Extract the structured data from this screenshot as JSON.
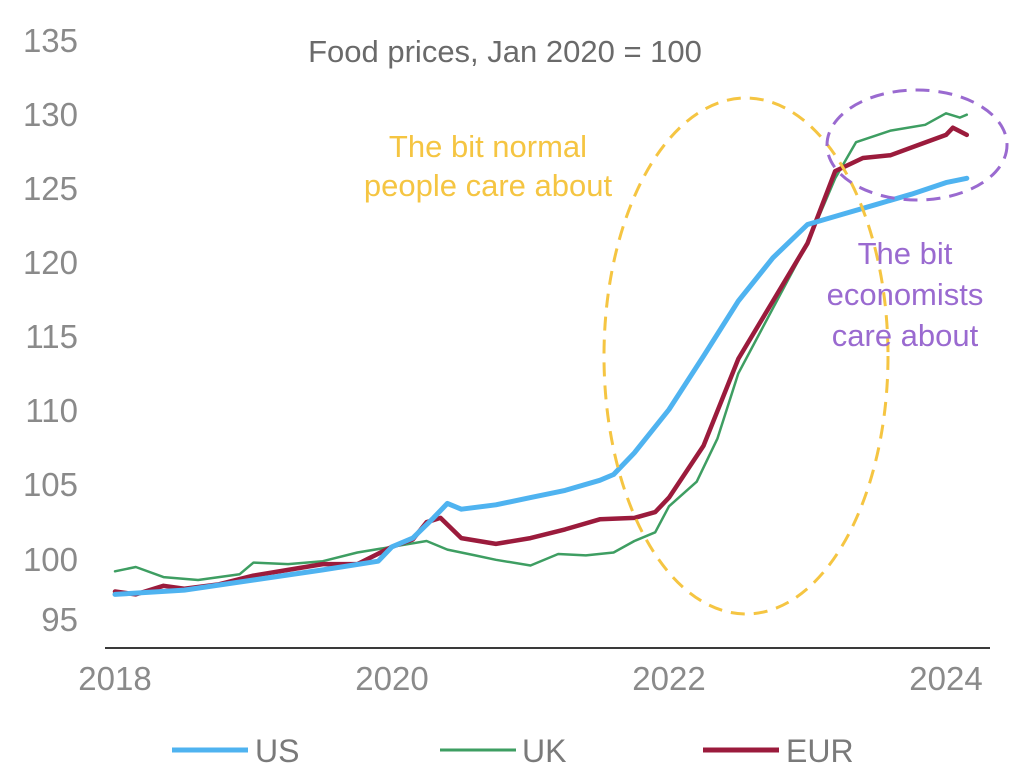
{
  "chart_data": {
    "type": "line",
    "title": "Food prices, Jan 2020 = 100",
    "xlabel": "",
    "ylabel": "",
    "xlim": [
      2018,
      2024.25
    ],
    "ylim": [
      95,
      135
    ],
    "x_ticks": [
      "2018",
      "2020",
      "2022",
      "2024"
    ],
    "y_ticks": [
      "95",
      "100",
      "105",
      "110",
      "115",
      "120",
      "125",
      "130",
      "135"
    ],
    "grid": false,
    "legend_position": "bottom",
    "series": [
      {
        "name": "US",
        "color": "#4fb3f0",
        "points": [
          [
            2018.0,
            96.7
          ],
          [
            2018.5,
            97.0
          ],
          [
            2019.0,
            97.7
          ],
          [
            2019.5,
            98.4
          ],
          [
            2019.9,
            99.0
          ],
          [
            2020.0,
            100.0
          ],
          [
            2020.15,
            100.6
          ],
          [
            2020.3,
            102.0
          ],
          [
            2020.4,
            103.0
          ],
          [
            2020.5,
            102.6
          ],
          [
            2020.75,
            102.9
          ],
          [
            2021.0,
            103.4
          ],
          [
            2021.25,
            103.9
          ],
          [
            2021.5,
            104.6
          ],
          [
            2021.6,
            105.0
          ],
          [
            2021.75,
            106.5
          ],
          [
            2022.0,
            109.5
          ],
          [
            2022.25,
            113.2
          ],
          [
            2022.5,
            117.0
          ],
          [
            2022.75,
            120.0
          ],
          [
            2023.0,
            122.3
          ],
          [
            2023.25,
            123.0
          ],
          [
            2023.5,
            123.7
          ],
          [
            2023.75,
            124.4
          ],
          [
            2024.0,
            125.2
          ],
          [
            2024.15,
            125.5
          ]
        ]
      },
      {
        "name": "UK",
        "color": "#3e9e62",
        "points": [
          [
            2018.0,
            98.3
          ],
          [
            2018.15,
            98.6
          ],
          [
            2018.35,
            97.9
          ],
          [
            2018.6,
            97.7
          ],
          [
            2018.9,
            98.1
          ],
          [
            2019.0,
            98.9
          ],
          [
            2019.25,
            98.8
          ],
          [
            2019.5,
            99.0
          ],
          [
            2019.75,
            99.6
          ],
          [
            2020.0,
            100.0
          ],
          [
            2020.25,
            100.4
          ],
          [
            2020.4,
            99.8
          ],
          [
            2020.6,
            99.4
          ],
          [
            2020.75,
            99.1
          ],
          [
            2021.0,
            98.7
          ],
          [
            2021.2,
            99.5
          ],
          [
            2021.4,
            99.4
          ],
          [
            2021.6,
            99.6
          ],
          [
            2021.75,
            100.4
          ],
          [
            2021.9,
            101.0
          ],
          [
            2022.0,
            102.8
          ],
          [
            2022.2,
            104.5
          ],
          [
            2022.35,
            107.5
          ],
          [
            2022.5,
            112.0
          ],
          [
            2022.75,
            116.5
          ],
          [
            2023.0,
            121.0
          ],
          [
            2023.2,
            125.5
          ],
          [
            2023.35,
            128.0
          ],
          [
            2023.6,
            128.8
          ],
          [
            2023.85,
            129.2
          ],
          [
            2024.0,
            130.0
          ],
          [
            2024.1,
            129.7
          ],
          [
            2024.15,
            129.9
          ]
        ]
      },
      {
        "name": "EUR",
        "color": "#9b1b3c",
        "points": [
          [
            2018.0,
            96.9
          ],
          [
            2018.15,
            96.7
          ],
          [
            2018.35,
            97.3
          ],
          [
            2018.5,
            97.1
          ],
          [
            2018.75,
            97.4
          ],
          [
            2019.0,
            98.0
          ],
          [
            2019.25,
            98.4
          ],
          [
            2019.5,
            98.8
          ],
          [
            2019.75,
            98.8
          ],
          [
            2020.0,
            100.0
          ],
          [
            2020.15,
            100.5
          ],
          [
            2020.25,
            101.7
          ],
          [
            2020.35,
            102.0
          ],
          [
            2020.5,
            100.6
          ],
          [
            2020.75,
            100.2
          ],
          [
            2021.0,
            100.6
          ],
          [
            2021.25,
            101.2
          ],
          [
            2021.5,
            101.9
          ],
          [
            2021.75,
            102.0
          ],
          [
            2021.9,
            102.4
          ],
          [
            2022.0,
            103.4
          ],
          [
            2022.25,
            107.0
          ],
          [
            2022.5,
            113.0
          ],
          [
            2022.75,
            117.0
          ],
          [
            2023.0,
            121.0
          ],
          [
            2023.2,
            126.0
          ],
          [
            2023.4,
            126.9
          ],
          [
            2023.6,
            127.1
          ],
          [
            2023.8,
            127.8
          ],
          [
            2024.0,
            128.5
          ],
          [
            2024.05,
            129.0
          ],
          [
            2024.15,
            128.5
          ]
        ]
      }
    ],
    "annotations": [
      {
        "name": "normal-people",
        "lines": [
          "The bit normal",
          "people care about"
        ],
        "color": "#f5c542"
      },
      {
        "name": "economists",
        "lines": [
          "The bit",
          "economists",
          "care about"
        ],
        "color": "#9a6ad0"
      }
    ]
  }
}
